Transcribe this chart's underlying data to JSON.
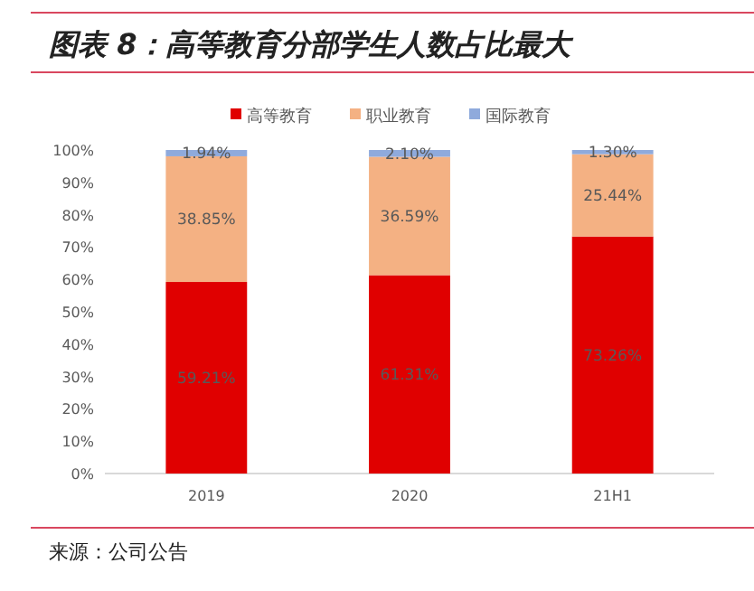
{
  "chart_data": {
    "type": "bar",
    "stacked": true,
    "title": "图表 8：高等教育分部学生人数占比最大",
    "categories": [
      "2019",
      "2020",
      "21H1"
    ],
    "series": [
      {
        "name": "高等教育",
        "color": "#e00000",
        "values": [
          59.21,
          61.31,
          73.26
        ],
        "value_labels": [
          "59.21%",
          "61.31%",
          "73.26%"
        ]
      },
      {
        "name": "职业教育",
        "color": "#f4b183",
        "values": [
          38.85,
          36.59,
          25.44
        ],
        "value_labels": [
          "38.85%",
          "36.59%",
          "25.44%"
        ]
      },
      {
        "name": "国际教育",
        "color": "#8faadc",
        "values": [
          1.94,
          2.1,
          1.3
        ],
        "value_labels": [
          "1.94%",
          "2.10%",
          "1.30%"
        ]
      }
    ],
    "ylim": [
      0,
      100
    ],
    "yticks": [
      {
        "value": 0,
        "label": "0%"
      },
      {
        "value": 10,
        "label": "10%"
      },
      {
        "value": 20,
        "label": "20%"
      },
      {
        "value": 30,
        "label": "30%"
      },
      {
        "value": 40,
        "label": "40%"
      },
      {
        "value": 50,
        "label": "50%"
      },
      {
        "value": 60,
        "label": "60%"
      },
      {
        "value": 70,
        "label": "70%"
      },
      {
        "value": 80,
        "label": "80%"
      },
      {
        "value": 90,
        "label": "90%"
      },
      {
        "value": 100,
        "label": "100%"
      }
    ],
    "legend": "top",
    "annotations": [
      "来源：公司公告"
    ]
  }
}
